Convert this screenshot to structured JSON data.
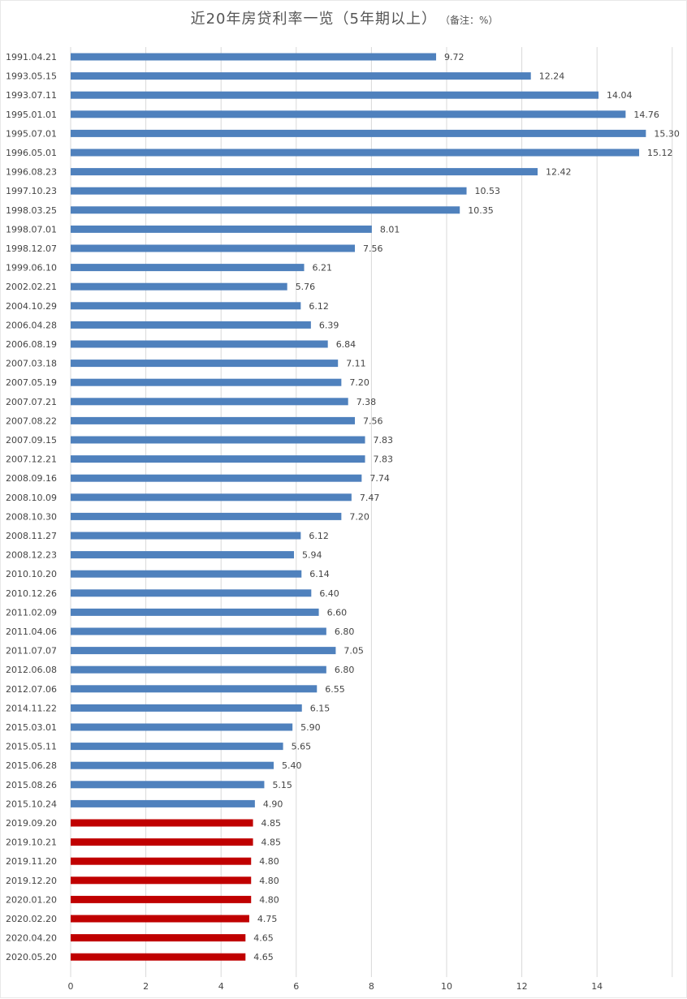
{
  "colors": {
    "blue_bar": "#4f81bd",
    "red_bar": "#c00000",
    "grid": "#d9d9d9",
    "text": "#444444"
  },
  "chart_data": {
    "type": "bar",
    "orientation": "horizontal",
    "title": "近20年房贷利率一览（5年期以上）",
    "note": "（备注：%）",
    "xlim": [
      0,
      16
    ],
    "x_ticks": [
      0,
      2,
      4,
      6,
      8,
      10,
      12,
      14
    ],
    "grid": true,
    "legend": "none",
    "categories": [
      "1991.04.21",
      "1993.05.15",
      "1993.07.11",
      "1995.01.01",
      "1995.07.01",
      "1996.05.01",
      "1996.08.23",
      "1997.10.23",
      "1998.03.25",
      "1998.07.01",
      "1998.12.07",
      "1999.06.10",
      "2002.02.21",
      "2004.10.29",
      "2006.04.28",
      "2006.08.19",
      "2007.03.18",
      "2007.05.19",
      "2007.07.21",
      "2007.08.22",
      "2007.09.15",
      "2007.12.21",
      "2008.09.16",
      "2008.10.09",
      "2008.10.30",
      "2008.11.27",
      "2008.12.23",
      "2010.10.20",
      "2010.12.26",
      "2011.02.09",
      "2011.04.06",
      "2011.07.07",
      "2012.06.08",
      "2012.07.06",
      "2014.11.22",
      "2015.03.01",
      "2015.05.11",
      "2015.06.28",
      "2015.08.26",
      "2015.10.24",
      "2019.09.20",
      "2019.10.21",
      "2019.11.20",
      "2019.12.20",
      "2020.01.20",
      "2020.02.20",
      "2020.04.20",
      "2020.05.20"
    ],
    "values": [
      9.72,
      12.24,
      14.04,
      14.76,
      15.3,
      15.12,
      12.42,
      10.53,
      10.35,
      8.01,
      7.56,
      6.21,
      5.76,
      6.12,
      6.39,
      6.84,
      7.11,
      7.2,
      7.38,
      7.56,
      7.83,
      7.83,
      7.74,
      7.47,
      7.2,
      6.12,
      5.94,
      6.14,
      6.4,
      6.6,
      6.8,
      7.05,
      6.8,
      6.55,
      6.15,
      5.9,
      5.65,
      5.4,
      5.15,
      4.9,
      4.85,
      4.85,
      4.8,
      4.8,
      4.8,
      4.75,
      4.65,
      4.65
    ],
    "value_labels": [
      "9.72",
      "12.24",
      "14.04",
      "14.76",
      "15.30",
      "15.12",
      "12.42",
      "10.53",
      "10.35",
      "8.01",
      "7.56",
      "6.21",
      "5.76",
      "6.12",
      "6.39",
      "6.84",
      "7.11",
      "7.20",
      "7.38",
      "7.56",
      "7.83",
      "7.83",
      "7.74",
      "7.47",
      "7.20",
      "6.12",
      "5.94",
      "6.14",
      "6.40",
      "6.60",
      "6.80",
      "7.05",
      "6.80",
      "6.55",
      "6.15",
      "5.90",
      "5.65",
      "5.40",
      "5.15",
      "4.90",
      "4.85",
      "4.85",
      "4.80",
      "4.80",
      "4.80",
      "4.75",
      "4.65",
      "4.65"
    ],
    "highlight_from_index": 40
  }
}
